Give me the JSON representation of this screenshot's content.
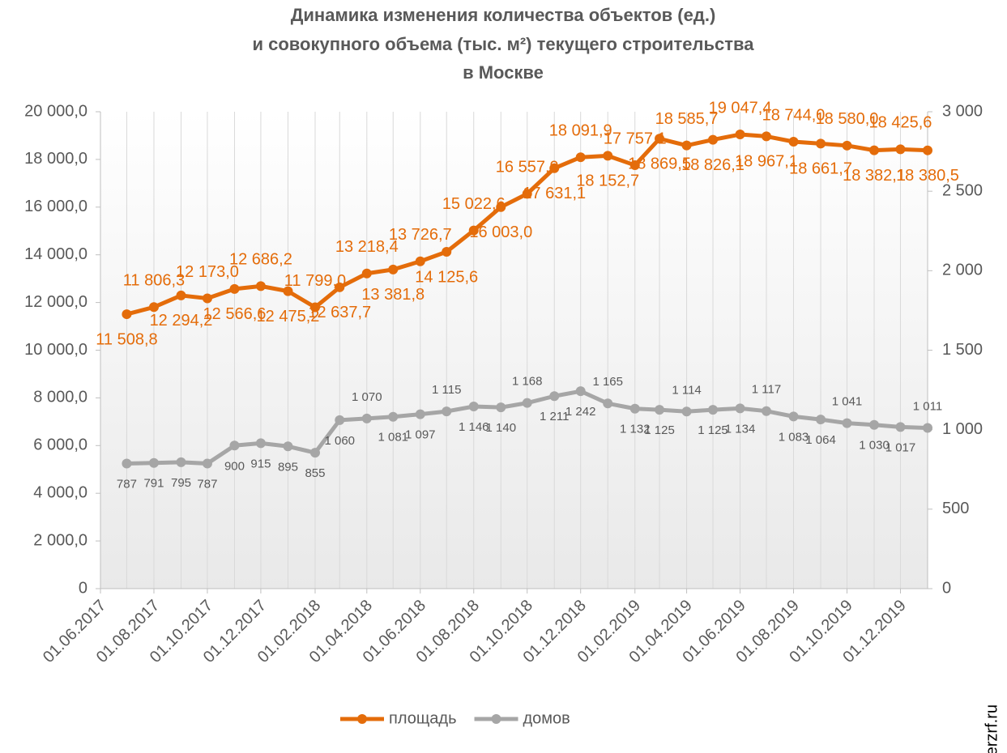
{
  "chart_data": {
    "type": "line",
    "title": [
      "Динамика изменения количества объектов (ед.)",
      "и совокупного объема (тыс. м²) текущего строительства",
      "в Москве"
    ],
    "credit": "© erzrf.ru",
    "x": [
      "2017-07-01",
      "2017-08-01",
      "2017-09-01",
      "2017-10-01",
      "2017-11-01",
      "2017-12-01",
      "2018-01-01",
      "2018-02-01",
      "2018-03-01",
      "2018-04-01",
      "2018-05-01",
      "2018-06-01",
      "2018-07-01",
      "2018-08-01",
      "2018-09-01",
      "2018-10-01",
      "2018-11-01",
      "2018-12-01",
      "2019-01-01",
      "2019-02-01",
      "2019-03-01",
      "2019-04-01",
      "2019-05-01",
      "2019-06-01",
      "2019-07-01",
      "2019-08-01",
      "2019-09-01",
      "2019-10-01",
      "2019-11-01",
      "2019-12-01",
      "2020-01-01"
    ],
    "xlim": [
      "2017-06-01",
      "2020-01-01"
    ],
    "xticks": [
      {
        "value": "2017-06-01",
        "label": "01.06.2017"
      },
      {
        "value": "2017-08-01",
        "label": "01.08.2017"
      },
      {
        "value": "2017-10-01",
        "label": "01.10.2017"
      },
      {
        "value": "2017-12-01",
        "label": "01.12.2017"
      },
      {
        "value": "2018-02-01",
        "label": "01.02.2018"
      },
      {
        "value": "2018-04-01",
        "label": "01.04.2018"
      },
      {
        "value": "2018-06-01",
        "label": "01.06.2018"
      },
      {
        "value": "2018-08-01",
        "label": "01.08.2018"
      },
      {
        "value": "2018-10-01",
        "label": "01.10.2018"
      },
      {
        "value": "2018-12-01",
        "label": "01.12.2018"
      },
      {
        "value": "2019-02-01",
        "label": "01.02.2019"
      },
      {
        "value": "2019-04-01",
        "label": "01.04.2019"
      },
      {
        "value": "2019-06-01",
        "label": "01.06.2019"
      },
      {
        "value": "2019-08-01",
        "label": "01.08.2019"
      },
      {
        "value": "2019-10-01",
        "label": "01.10.2019"
      },
      {
        "value": "2019-12-01",
        "label": "01.12.2019"
      }
    ],
    "ylim": [
      0,
      20000
    ],
    "yticks": [
      0,
      {
        "value": 2000,
        "label": "2 000,0"
      },
      {
        "value": 4000,
        "label": "4 000,0"
      },
      {
        "value": 6000,
        "label": "6 000,0"
      },
      {
        "value": 8000,
        "label": "8 000,0"
      },
      {
        "value": 10000,
        "label": "10 000,0"
      },
      {
        "value": 12000,
        "label": "12 000,0"
      },
      {
        "value": 14000,
        "label": "14 000,0"
      },
      {
        "value": 16000,
        "label": "16 000,0"
      },
      {
        "value": 18000,
        "label": "18 000,0"
      },
      {
        "value": 20000,
        "label": "20 000,0"
      }
    ],
    "y2lim": [
      0,
      3000
    ],
    "y2ticks": [
      0,
      500,
      {
        "value": 1000,
        "label": "1 000"
      },
      {
        "value": 1500,
        "label": "1 500"
      },
      {
        "value": 2000,
        "label": "2 000"
      },
      {
        "value": 2500,
        "label": "2 500"
      },
      {
        "value": 3000,
        "label": "3 000"
      }
    ],
    "legend": "bottom",
    "series": [
      {
        "name": "площадь",
        "color": "#E46C0A",
        "values": [
          11508.8,
          11806.3,
          12294.2,
          12173.0,
          12566.6,
          12686.2,
          12475.2,
          11799.0,
          12637.7,
          13218.4,
          13381.8,
          13726.7,
          14125.6,
          15022.6,
          16003.0,
          16557.9,
          17631.1,
          18091.9,
          18152.7,
          17757.1,
          18869.5,
          18585.7,
          18826.1,
          19047.4,
          18967.1,
          18744.0,
          18661.7,
          18580.0,
          18382.1,
          18425.6,
          18380.5
        ],
        "value_labels": [
          "11 508,8",
          "11 806,3",
          "12 294,2",
          "12 173,0",
          "12 566,6",
          "12 686,2",
          "12 475,2",
          "11 799,0",
          "12 637,7",
          "13 218,4",
          "13 381,8",
          "13 726,7",
          "14 125,6",
          "15 022,6",
          "16 003,0",
          "16 557,9",
          "17 631,1",
          "18 091,9",
          "18 152,7",
          "17 757,1",
          "18 869,5",
          "18 585,7",
          "18 826,1",
          "19 047,4",
          "18 967,1",
          "18 744,0",
          "18 661,7",
          "18 580,0",
          "18 382,1",
          "18 425,6",
          "18 380,5"
        ]
      },
      {
        "name": "домов",
        "color": "#A6A6A6",
        "axis": "y2",
        "values": [
          787,
          791,
          795,
          787,
          900,
          915,
          895,
          855,
          1060,
          1070,
          1081,
          1097,
          1115,
          1146,
          1140,
          1168,
          1211,
          1242,
          1165,
          1132,
          1125,
          1114,
          1125,
          1134,
          1117,
          1083,
          1064,
          1041,
          1030,
          1017,
          1011
        ],
        "value_labels": [
          "787",
          "791",
          "795",
          "787",
          "900",
          "915",
          "895",
          "855",
          "1 060",
          "1 070",
          "1 081",
          "1 097",
          "1 115",
          "1 146",
          "1 140",
          "1 168",
          "1 211",
          "1 242",
          "1 165",
          "1 132",
          "1 125",
          "1 114",
          "1 125",
          "1 134",
          "1 117",
          "1 083",
          "1 064",
          "1 041",
          "1 030",
          "1 017",
          "1 011"
        ]
      }
    ]
  }
}
